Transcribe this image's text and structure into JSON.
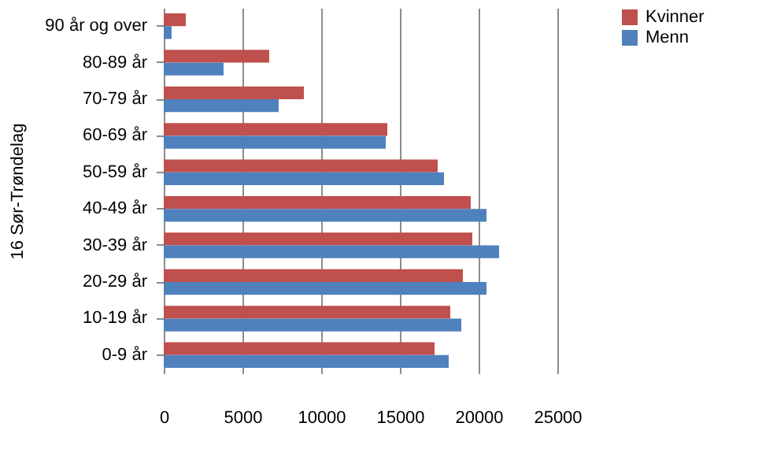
{
  "chart_data": {
    "type": "bar",
    "orientation": "horizontal",
    "ylabel": "16 Sør-Trøndelag",
    "categories": [
      "90 år og over",
      "80-89 år",
      "70-79 år",
      "60-69 år",
      "50-59 år",
      "40-49 år",
      "30-39 år",
      "20-29 år",
      "10-19 år",
      "0-9 år"
    ],
    "series": [
      {
        "name": "Kvinner",
        "color": "#c0504d",
        "values": [
          1400,
          6700,
          8900,
          14200,
          17400,
          19500,
          19600,
          19000,
          18200,
          17200
        ]
      },
      {
        "name": "Menn",
        "color": "#4f81bd",
        "values": [
          500,
          3800,
          7300,
          14100,
          17800,
          20500,
          21300,
          20500,
          18900,
          18100
        ]
      }
    ],
    "xlim": [
      0,
      25000
    ],
    "xticks": [
      0,
      5000,
      10000,
      15000,
      20000,
      25000
    ],
    "grid": "x",
    "legend": "right"
  }
}
